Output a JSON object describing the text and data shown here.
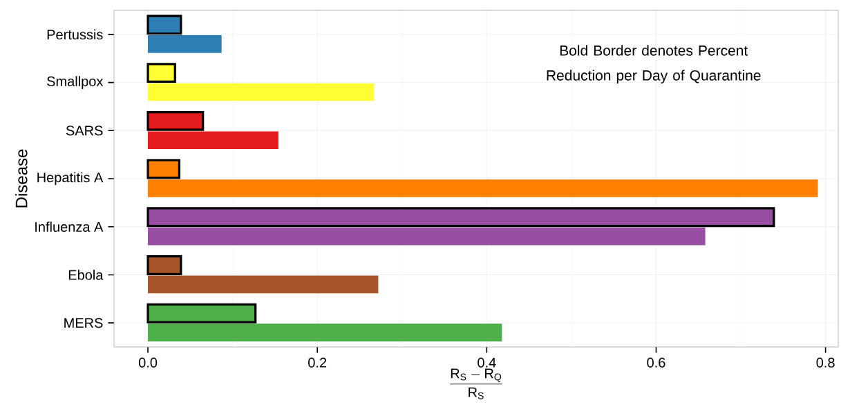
{
  "chart_data": {
    "type": "bar",
    "orientation": "horizontal",
    "categories": [
      "Pertussis",
      "Smallpox",
      "SARS",
      "Hepatitis A",
      "Influenza A",
      "Ebola",
      "MERS"
    ],
    "series": [
      {
        "colors": [
          "#2e7eb6",
          "#ffff33",
          "#e41a1c",
          "#ff7f00",
          "#984ea3",
          "#a65628",
          "#4daf4a"
        ],
        "values": [
          0.039,
          0.032,
          0.065,
          0.037,
          0.739,
          0.039,
          0.127
        ]
      },
      {
        "colors": [
          "#2e7eb6",
          "#ffff33",
          "#e41a1c",
          "#ff7f00",
          "#984ea3",
          "#a65628",
          "#4daf4a"
        ],
        "values": [
          0.087,
          0.267,
          0.154,
          0.791,
          0.658,
          0.272,
          0.418
        ]
      }
    ],
    "xlabel": "\\frac{\\mathsf{R_S - R_Q}}{\\mathsf{R_S}}",
    "ylabel": "Disease",
    "xlim": [
      -0.04,
      0.815
    ],
    "xticks": [
      {
        "value": 0,
        "label": "0.0"
      },
      0.2,
      0.4,
      0.6,
      0.8
    ],
    "grid": true,
    "annotations": [
      "Bold Border denotes Percent Reduction per Day of Quarantine"
    ]
  }
}
